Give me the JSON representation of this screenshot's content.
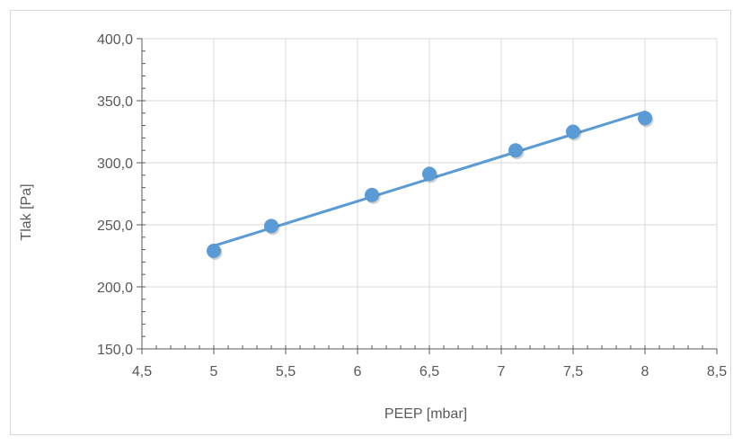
{
  "chart_data": {
    "type": "scatter",
    "title": "",
    "xlabel": "PEEP [mbar]",
    "ylabel": "Tlak [Pa]",
    "xlim": [
      4.5,
      8.5
    ],
    "ylim": [
      150,
      400
    ],
    "x_ticks": [
      "4,5",
      "5",
      "5,5",
      "6",
      "6,5",
      "7",
      "7,5",
      "8",
      "8,5"
    ],
    "y_ticks": [
      "150,0",
      "200,0",
      "250,0",
      "300,0",
      "350,0",
      "400,0"
    ],
    "grid": true,
    "legend": "none",
    "series": [
      {
        "points": [
          {
            "x": 5.0,
            "y": 229
          },
          {
            "x": 5.4,
            "y": 249
          },
          {
            "x": 6.1,
            "y": 274
          },
          {
            "x": 6.5,
            "y": 291
          },
          {
            "x": 7.1,
            "y": 310
          },
          {
            "x": 7.5,
            "y": 325
          },
          {
            "x": 8.0,
            "y": 336
          }
        ],
        "trendline": {
          "type": "linear",
          "from": {
            "x": 5.0,
            "y": 233
          },
          "to": {
            "x": 8.0,
            "y": 341
          }
        },
        "color": "#5b9bd5"
      }
    ]
  }
}
